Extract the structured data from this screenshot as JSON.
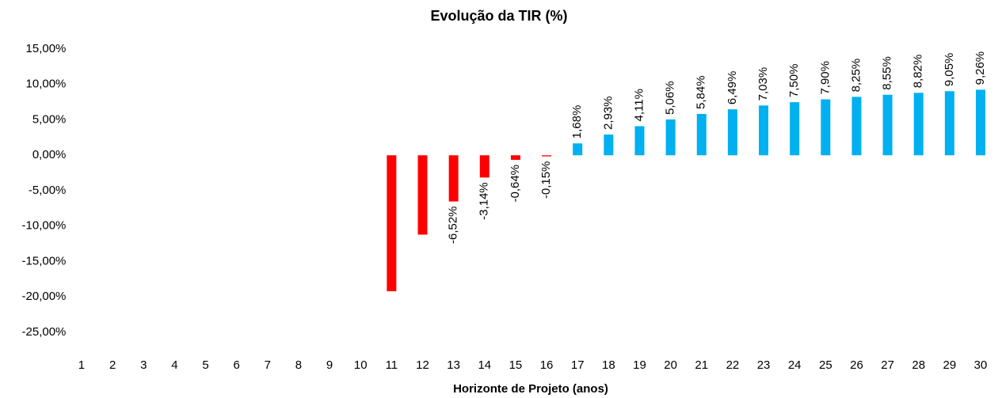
{
  "chart_data": {
    "type": "bar",
    "title": "Evolução da TIR (%)",
    "x_label": "Horizonte de Projeto (anos)",
    "categories": [
      "1",
      "2",
      "3",
      "4",
      "5",
      "6",
      "7",
      "8",
      "9",
      "10",
      "11",
      "12",
      "13",
      "14",
      "15",
      "16",
      "17",
      "18",
      "19",
      "20",
      "21",
      "22",
      "23",
      "24",
      "25",
      "26",
      "27",
      "28",
      "29",
      "30"
    ],
    "values": [
      null,
      null,
      null,
      null,
      null,
      null,
      null,
      null,
      null,
      null,
      -19.2,
      -11.2,
      -6.52,
      -3.14,
      -0.64,
      -0.15,
      1.68,
      2.93,
      4.11,
      5.06,
      5.84,
      6.49,
      7.03,
      7.5,
      7.9,
      8.25,
      8.55,
      8.82,
      9.05,
      9.26
    ],
    "value_labels": [
      null,
      null,
      null,
      null,
      null,
      null,
      null,
      null,
      null,
      null,
      null,
      null,
      "-6,52%",
      "-3,14%",
      "-0,64%",
      "-0,15%",
      "1,68%",
      "2,93%",
      "4,11%",
      "5,06%",
      "5,84%",
      "6,49%",
      "7,03%",
      "7,50%",
      "7,90%",
      "8,25%",
      "8,55%",
      "8,82%",
      "9,05%",
      "9,26%"
    ],
    "color": "#00b0f0",
    "negative_color": "#ff0000",
    "ylim": [
      -25,
      15
    ],
    "yticks": [
      {
        "value": -25,
        "label": "-25,00%"
      },
      {
        "value": -20,
        "label": "-20,00%"
      },
      {
        "value": -15,
        "label": "-15,00%"
      },
      {
        "value": -10,
        "label": "-10,00%"
      },
      {
        "value": -5,
        "label": "-5,00%"
      },
      {
        "value": 0,
        "label": "0,00%"
      },
      {
        "value": 5,
        "label": "5,00%"
      },
      {
        "value": 10,
        "label": "10,00%"
      },
      {
        "value": 15,
        "label": "15,00%"
      }
    ],
    "grid": false
  }
}
